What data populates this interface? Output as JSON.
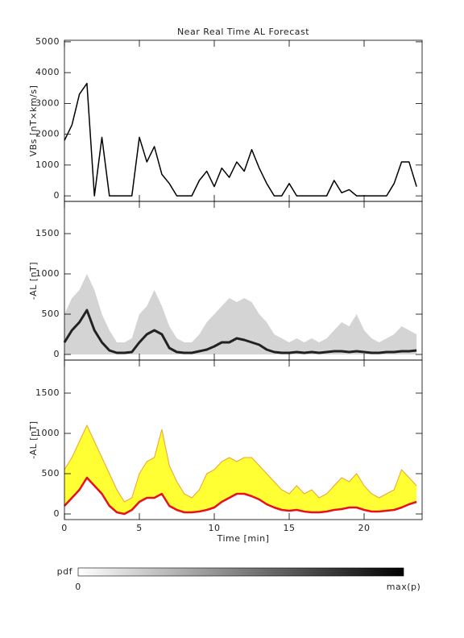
{
  "chart_data": [
    {
      "type": "line",
      "title": "Near Real Time AL Forecast",
      "ylabel": "VBs [nT×km/s]",
      "x": [
        0,
        0.5,
        1,
        1.5,
        2,
        2.5,
        3,
        3.5,
        4,
        4.5,
        5,
        5.5,
        6,
        6.5,
        7,
        7.5,
        8,
        8.5,
        9,
        9.5,
        10,
        10.5,
        11,
        11.5,
        12,
        12.5,
        13,
        13.5,
        14,
        14.5,
        15,
        15.5,
        16,
        16.5,
        17,
        17.5,
        18,
        18.5,
        19,
        19.5,
        20,
        20.5,
        21,
        21.5,
        22,
        22.5,
        23,
        23.5
      ],
      "series": [
        {
          "color": "#000000",
          "values": [
            1800,
            2300,
            3300,
            3650,
            0,
            1900,
            0,
            0,
            0,
            0,
            1900,
            1100,
            1600,
            700,
            400,
            0,
            0,
            0,
            500,
            800,
            300,
            900,
            600,
            1100,
            800,
            1500,
            900,
            400,
            0,
            0,
            400,
            0,
            0,
            0,
            0,
            0,
            500,
            100,
            200,
            0,
            0,
            0,
            0,
            0,
            400,
            1100,
            1100,
            300
          ]
        }
      ],
      "xlim": [
        0,
        23.87
      ],
      "xticks": [
        0,
        5,
        10,
        15,
        20
      ],
      "ylim": [
        -180,
        5050
      ],
      "yticks": [
        0,
        1000,
        2000,
        3000,
        4000,
        5000
      ],
      "show_xtick_labels": false
    },
    {
      "type": "area",
      "ylabel": "-AL [nT]",
      "x": [
        0,
        0.5,
        1,
        1.5,
        2,
        2.5,
        3,
        3.5,
        4,
        4.5,
        5,
        5.5,
        6,
        6.5,
        7,
        7.5,
        8,
        8.5,
        9,
        9.5,
        10,
        10.5,
        11,
        11.5,
        12,
        12.5,
        13,
        13.5,
        14,
        14.5,
        15,
        15.5,
        16,
        16.5,
        17,
        17.5,
        18,
        18.5,
        19,
        19.5,
        20,
        20.5,
        21,
        21.5,
        22,
        22.5,
        23,
        23.5
      ],
      "bands": [
        {
          "color": "#d4d4d4",
          "values": [
            500,
            700,
            800,
            1000,
            800,
            500,
            300,
            150,
            150,
            200,
            500,
            600,
            800,
            600,
            350,
            200,
            150,
            150,
            250,
            400,
            500,
            600,
            700,
            650,
            700,
            650,
            500,
            400,
            250,
            200,
            150,
            200,
            150,
            200,
            150,
            200,
            300,
            400,
            350,
            500,
            300,
            200,
            150,
            200,
            250,
            350,
            300,
            250
          ]
        }
      ],
      "series": [
        {
          "color": "#222222",
          "values": [
            150,
            300,
            400,
            550,
            300,
            150,
            50,
            20,
            20,
            30,
            150,
            250,
            300,
            250,
            80,
            30,
            20,
            20,
            40,
            60,
            100,
            150,
            150,
            200,
            180,
            150,
            120,
            60,
            30,
            20,
            20,
            30,
            20,
            30,
            20,
            30,
            40,
            40,
            30,
            40,
            30,
            20,
            20,
            30,
            30,
            40,
            40,
            50
          ]
        }
      ],
      "colorbar": {
        "label": "pdf",
        "min_label": "0",
        "max_label": "max(p)"
      },
      "xlim": [
        0,
        23.87
      ],
      "xticks": [
        0,
        5,
        10,
        15,
        20
      ],
      "ylim": [
        -70,
        1900
      ],
      "yticks": [
        0,
        500,
        1000,
        1500
      ],
      "show_xtick_labels": false
    },
    {
      "type": "area",
      "ylabel": "-AL [nT]",
      "xlabel": "Time [min]",
      "x": [
        0,
        0.5,
        1,
        1.5,
        2,
        2.5,
        3,
        3.5,
        4,
        4.5,
        5,
        5.5,
        6,
        6.5,
        7,
        7.5,
        8,
        8.5,
        9,
        9.5,
        10,
        10.5,
        11,
        11.5,
        12,
        12.5,
        13,
        13.5,
        14,
        14.5,
        15,
        15.5,
        16,
        16.5,
        17,
        17.5,
        18,
        18.5,
        19,
        19.5,
        20,
        20.5,
        21,
        21.5,
        22,
        22.5,
        23,
        23.5
      ],
      "bands": [
        {
          "color": "#ffff33",
          "edge_color": "#f0a030",
          "values": [
            550,
            700,
            900,
            1100,
            900,
            700,
            500,
            300,
            150,
            200,
            500,
            650,
            700,
            1050,
            600,
            400,
            250,
            200,
            300,
            500,
            550,
            650,
            700,
            650,
            700,
            700,
            600,
            500,
            400,
            300,
            250,
            350,
            250,
            300,
            200,
            250,
            350,
            450,
            400,
            500,
            350,
            250,
            200,
            250,
            300,
            550,
            450,
            350
          ]
        }
      ],
      "series": [
        {
          "color": "#e8101a",
          "values": [
            100,
            200,
            300,
            450,
            350,
            250,
            100,
            20,
            0,
            50,
            150,
            200,
            200,
            250,
            100,
            50,
            20,
            20,
            30,
            50,
            80,
            150,
            200,
            250,
            250,
            220,
            180,
            120,
            80,
            50,
            40,
            50,
            30,
            20,
            20,
            30,
            50,
            60,
            80,
            80,
            50,
            30,
            30,
            40,
            50,
            80,
            120,
            150
          ]
        }
      ],
      "xlim": [
        0,
        23.87
      ],
      "xticks": [
        0,
        5,
        10,
        15,
        20
      ],
      "ylim": [
        -70,
        1910
      ],
      "yticks": [
        0,
        500,
        1000,
        1500
      ],
      "show_xtick_labels": true
    }
  ]
}
